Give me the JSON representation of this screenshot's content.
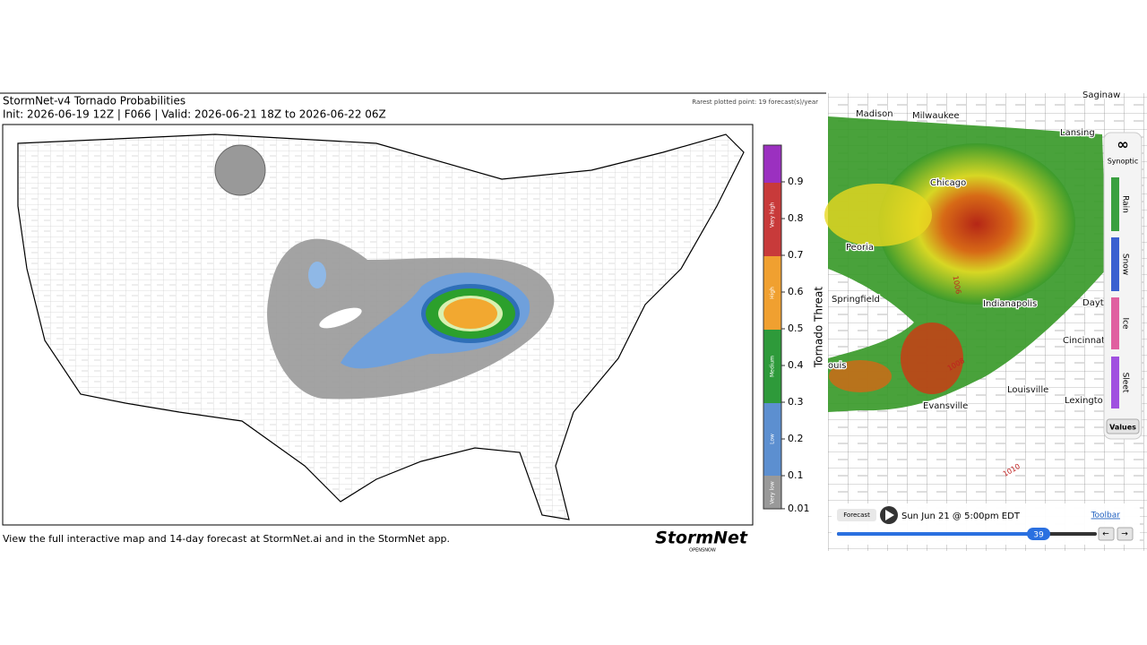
{
  "left_panel": {
    "title": "StormNet-v4 Tornado Probabilities",
    "subtitle": "Init: 2026-06-19 12Z | F066 | Valid: 2026-06-21 18Z to 2026-06-22 06Z",
    "note": "Rarest plotted point: 19 forecast(s)/year",
    "colorbar": {
      "label": "Tornado Threat",
      "ticks": [
        0.01,
        0.1,
        0.2,
        0.3,
        0.4,
        0.5,
        0.6,
        0.7,
        0.8,
        0.9
      ],
      "categories": [
        "Very low",
        "Low",
        "Medium",
        "High",
        "Very high"
      ]
    },
    "footer": "View the full interactive map and 14-day forecast at StormNet.ai and in the StormNet app.",
    "logo": "StormNet",
    "logo_sub": "OPENSNOW"
  },
  "right_panel": {
    "cities": [
      "Saginaw",
      "Madison",
      "Milwaukee",
      "Lansing",
      "Chicago",
      "Peoria",
      "Springfield",
      "Indianapolis",
      "Dayto",
      "Cincinnati",
      "ouis",
      "Louisville",
      "Lexington",
      "Evansville"
    ],
    "isobars": [
      "1006",
      "1008",
      "1010"
    ],
    "layers": {
      "title": "Synoptic",
      "items": [
        "Rain",
        "Snow",
        "Ice",
        "Sleet"
      ],
      "button": "Values"
    },
    "controls": {
      "button": "Forecast",
      "time": "Sun Jun 21 @ 5:00pm EDT",
      "link": "Toolbar",
      "slider": 39
    }
  }
}
